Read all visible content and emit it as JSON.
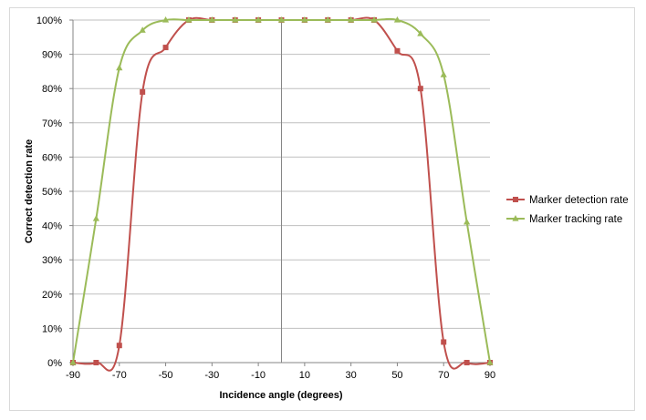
{
  "chart_data": {
    "type": "line",
    "xlabel": "Incidence angle (degrees)",
    "ylabel": "Correct detection rate",
    "xlim": [
      -90,
      90
    ],
    "ylim": [
      0,
      100
    ],
    "x_ticks": [
      "-90",
      "-70",
      "-50",
      "-30",
      "-10",
      "10",
      "30",
      "50",
      "70",
      "90"
    ],
    "y_ticks": [
      "0%",
      "10%",
      "20%",
      "30%",
      "40%",
      "50%",
      "60%",
      "70%",
      "80%",
      "90%",
      "100%"
    ],
    "grid": "horizontal",
    "legend_position": "right",
    "series": [
      {
        "name": "Marker detection rate",
        "color": "#c0504d",
        "marker": "square",
        "points": [
          {
            "x": -90,
            "y": 0
          },
          {
            "x": -80,
            "y": 0
          },
          {
            "x": -70,
            "y": 5
          },
          {
            "x": -60,
            "y": 79
          },
          {
            "x": -50,
            "y": 92
          },
          {
            "x": -40,
            "y": 100
          },
          {
            "x": -30,
            "y": 100
          },
          {
            "x": -20,
            "y": 100
          },
          {
            "x": -10,
            "y": 100
          },
          {
            "x": 0,
            "y": 100
          },
          {
            "x": 10,
            "y": 100
          },
          {
            "x": 20,
            "y": 100
          },
          {
            "x": 30,
            "y": 100
          },
          {
            "x": 40,
            "y": 100
          },
          {
            "x": 50,
            "y": 91
          },
          {
            "x": 60,
            "y": 80
          },
          {
            "x": 70,
            "y": 6
          },
          {
            "x": 80,
            "y": 0
          },
          {
            "x": 90,
            "y": 0
          }
        ]
      },
      {
        "name": "Marker tracking rate",
        "color": "#9bbb59",
        "marker": "triangle",
        "points": [
          {
            "x": -90,
            "y": 0
          },
          {
            "x": -80,
            "y": 42
          },
          {
            "x": -70,
            "y": 86
          },
          {
            "x": -60,
            "y": 97
          },
          {
            "x": -50,
            "y": 100
          },
          {
            "x": -40,
            "y": 100
          },
          {
            "x": -30,
            "y": 100
          },
          {
            "x": -20,
            "y": 100
          },
          {
            "x": -10,
            "y": 100
          },
          {
            "x": 0,
            "y": 100
          },
          {
            "x": 10,
            "y": 100
          },
          {
            "x": 20,
            "y": 100
          },
          {
            "x": 30,
            "y": 100
          },
          {
            "x": 40,
            "y": 100
          },
          {
            "x": 50,
            "y": 100
          },
          {
            "x": 60,
            "y": 96
          },
          {
            "x": 70,
            "y": 84
          },
          {
            "x": 80,
            "y": 41
          },
          {
            "x": 90,
            "y": 0
          }
        ]
      }
    ]
  }
}
